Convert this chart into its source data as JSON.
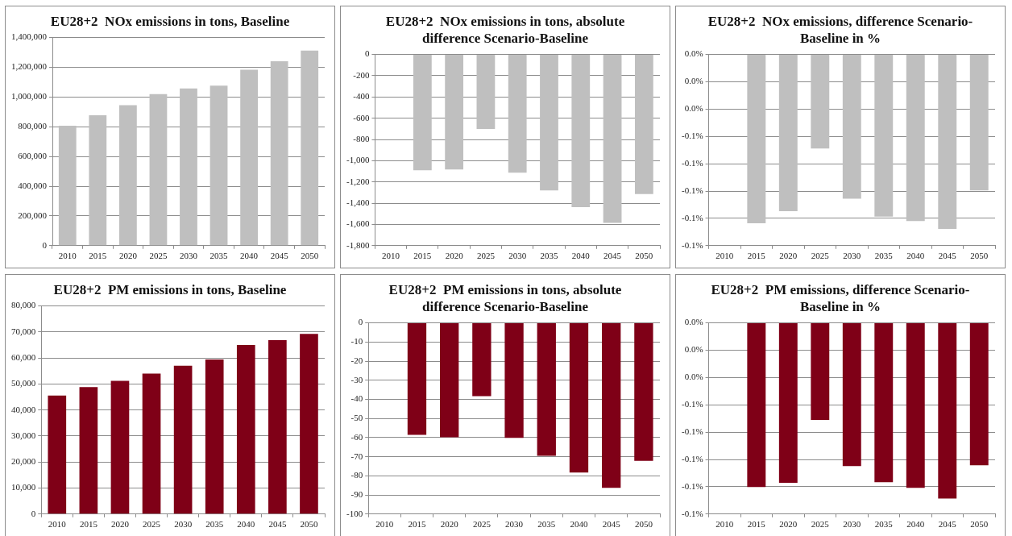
{
  "chart_data": [
    {
      "type": "bar",
      "title": "EU28+2  NOx emissions in tons, Baseline",
      "categories": [
        "2010",
        "2015",
        "2020",
        "2025",
        "2030",
        "2035",
        "2040",
        "2045",
        "2050"
      ],
      "values": [
        807000,
        877000,
        945000,
        1019000,
        1058000,
        1077000,
        1184000,
        1241000,
        1312000
      ],
      "color": "#bfbfbf",
      "ylim": [
        0,
        1400000
      ],
      "yticks": [
        0,
        {
          "value": 200000,
          "label": "200,000"
        },
        {
          "value": 400000,
          "label": "400,000"
        },
        {
          "value": 600000,
          "label": "600,000"
        },
        {
          "value": 800000,
          "label": "800,000"
        },
        {
          "value": 1000000,
          "label": "1,000,000"
        },
        {
          "value": 1200000,
          "label": "1,200,000"
        },
        {
          "value": 1400000,
          "label": "1,400,000"
        }
      ],
      "grid": "y"
    },
    {
      "type": "bar",
      "title": "EU28+2  NOx emissions in tons, absolute difference Scenario-Baseline",
      "categories": [
        "2010",
        "2015",
        "2020",
        "2025",
        "2030",
        "2035",
        "2040",
        "2045",
        "2050"
      ],
      "values": [
        0,
        -1091,
        -1083,
        -702,
        -1112,
        -1280,
        -1438,
        -1585,
        -1314
      ],
      "color": "#bfbfbf",
      "ylim": [
        -1800,
        0
      ],
      "yticks": [
        {
          "value": -1800,
          "label": "-1,800"
        },
        {
          "value": -1600,
          "label": "-1,600"
        },
        {
          "value": -1400,
          "label": "-1,400"
        },
        {
          "value": -1200,
          "label": "-1,200"
        },
        {
          "value": -1000,
          "label": "-1,000"
        },
        -800,
        -600,
        -400,
        -200,
        0
      ],
      "grid": "y"
    },
    {
      "type": "bar",
      "title": "EU28+2  NOx emissions, difference Scenario-Baseline in %",
      "categories": [
        "2010",
        "2015",
        "2020",
        "2025",
        "2030",
        "2035",
        "2040",
        "2045",
        "2050"
      ],
      "values": [
        0,
        -0.1236,
        -0.1148,
        -0.0688,
        -0.1056,
        -0.1187,
        -0.122,
        -0.1277,
        -0.0995
      ],
      "color": "#bfbfbf",
      "ylim": [
        -0.14,
        0
      ],
      "yticks": [
        {
          "value": -0.14,
          "label": "-0.1%"
        },
        {
          "value": -0.12,
          "label": "-0.1%"
        },
        {
          "value": -0.1,
          "label": "-0.1%"
        },
        {
          "value": -0.08,
          "label": "-0.1%"
        },
        {
          "value": -0.06,
          "label": "-0.1%"
        },
        {
          "value": -0.04,
          "label": "0.0%"
        },
        {
          "value": -0.02,
          "label": "0.0%"
        },
        {
          "value": 0,
          "label": "0.0%"
        }
      ],
      "grid": "y"
    },
    {
      "type": "bar",
      "title": "EU28+2  PM emissions in tons, Baseline",
      "categories": [
        "2010",
        "2015",
        "2020",
        "2025",
        "2030",
        "2035",
        "2040",
        "2045",
        "2050"
      ],
      "values": [
        45600,
        48800,
        51200,
        54000,
        57000,
        59400,
        65000,
        66900,
        69300
      ],
      "color": "#7f0017",
      "ylim": [
        0,
        80000
      ],
      "yticks": [
        0,
        {
          "value": 10000,
          "label": "10,000"
        },
        {
          "value": 20000,
          "label": "20,000"
        },
        {
          "value": 30000,
          "label": "30,000"
        },
        {
          "value": 40000,
          "label": "40,000"
        },
        {
          "value": 50000,
          "label": "50,000"
        },
        {
          "value": 60000,
          "label": "60,000"
        },
        {
          "value": 70000,
          "label": "70,000"
        },
        {
          "value": 80000,
          "label": "80,000"
        }
      ],
      "grid": "y"
    },
    {
      "type": "bar",
      "title": "EU28+2  PM emissions in tons, absolute difference Scenario-Baseline",
      "categories": [
        "2010",
        "2015",
        "2020",
        "2025",
        "2030",
        "2035",
        "2040",
        "2045",
        "2050"
      ],
      "values": [
        0,
        -58.6,
        -59.8,
        -38.3,
        -60.1,
        -69.5,
        -78.3,
        -86.3,
        -72.2
      ],
      "color": "#7f0017",
      "ylim": [
        -100,
        0
      ],
      "yticks": [
        -100,
        -90,
        -80,
        -70,
        -60,
        -50,
        -40,
        -30,
        -20,
        -10,
        0
      ],
      "grid": "y"
    },
    {
      "type": "bar",
      "title": "EU28+2  PM emissions, difference Scenario-Baseline in %",
      "categories": [
        "2010",
        "2015",
        "2020",
        "2025",
        "2030",
        "2035",
        "2040",
        "2045",
        "2050"
      ],
      "values": [
        0,
        -0.1202,
        -0.1171,
        -0.071,
        -0.1049,
        -0.1167,
        -0.1208,
        -0.1286,
        -0.1043
      ],
      "color": "#7f0017",
      "ylim": [
        -0.14,
        0
      ],
      "yticks": [
        {
          "value": -0.14,
          "label": "-0.1%"
        },
        {
          "value": -0.12,
          "label": "-0.1%"
        },
        {
          "value": -0.1,
          "label": "-0.1%"
        },
        {
          "value": -0.08,
          "label": "-0.1%"
        },
        {
          "value": -0.06,
          "label": "-0.1%"
        },
        {
          "value": -0.04,
          "label": "0.0%"
        },
        {
          "value": -0.02,
          "label": "0.0%"
        },
        {
          "value": 0,
          "label": "0.0%"
        }
      ],
      "grid": "y"
    }
  ]
}
